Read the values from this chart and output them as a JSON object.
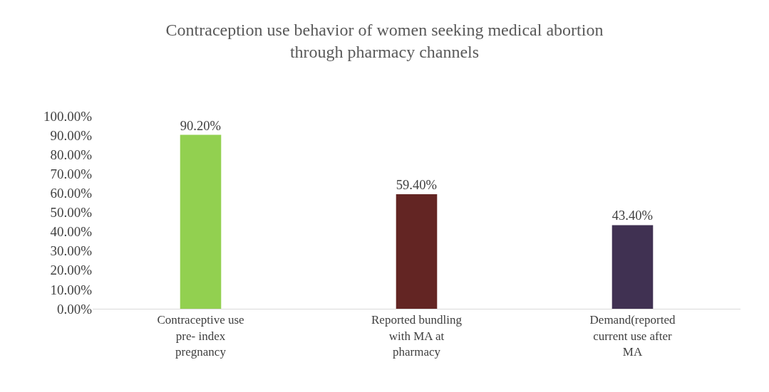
{
  "chart_data": {
    "type": "bar",
    "title": "Contraception use behavior of women seeking medical abortion through pharmacy channels",
    "categories": [
      "Contraceptive use pre- index pregnancy",
      "Reported bundling with MA at pharmacy",
      "Demand(reported current use after MA"
    ],
    "values": [
      90.2,
      59.4,
      43.4
    ],
    "colors": [
      "#92d050",
      "#632523",
      "#403152"
    ],
    "value_labels": [
      "90.20%",
      "59.40%",
      "43.40%"
    ],
    "ylim": [
      0,
      100
    ],
    "yticks": [
      {
        "value": 0,
        "label": "0.00%"
      },
      {
        "value": 10,
        "label": "10.00%"
      },
      {
        "value": 20,
        "label": "20.00%"
      },
      {
        "value": 30,
        "label": "30.00%"
      },
      {
        "value": 40,
        "label": "40.00%"
      },
      {
        "value": 50,
        "label": "50.00%"
      },
      {
        "value": 60,
        "label": "60.00%"
      },
      {
        "value": 70,
        "label": "70.00%"
      },
      {
        "value": 80,
        "label": "80.00%"
      },
      {
        "value": 90,
        "label": "90.00%"
      },
      {
        "value": 100,
        "label": "100.00%"
      }
    ]
  }
}
